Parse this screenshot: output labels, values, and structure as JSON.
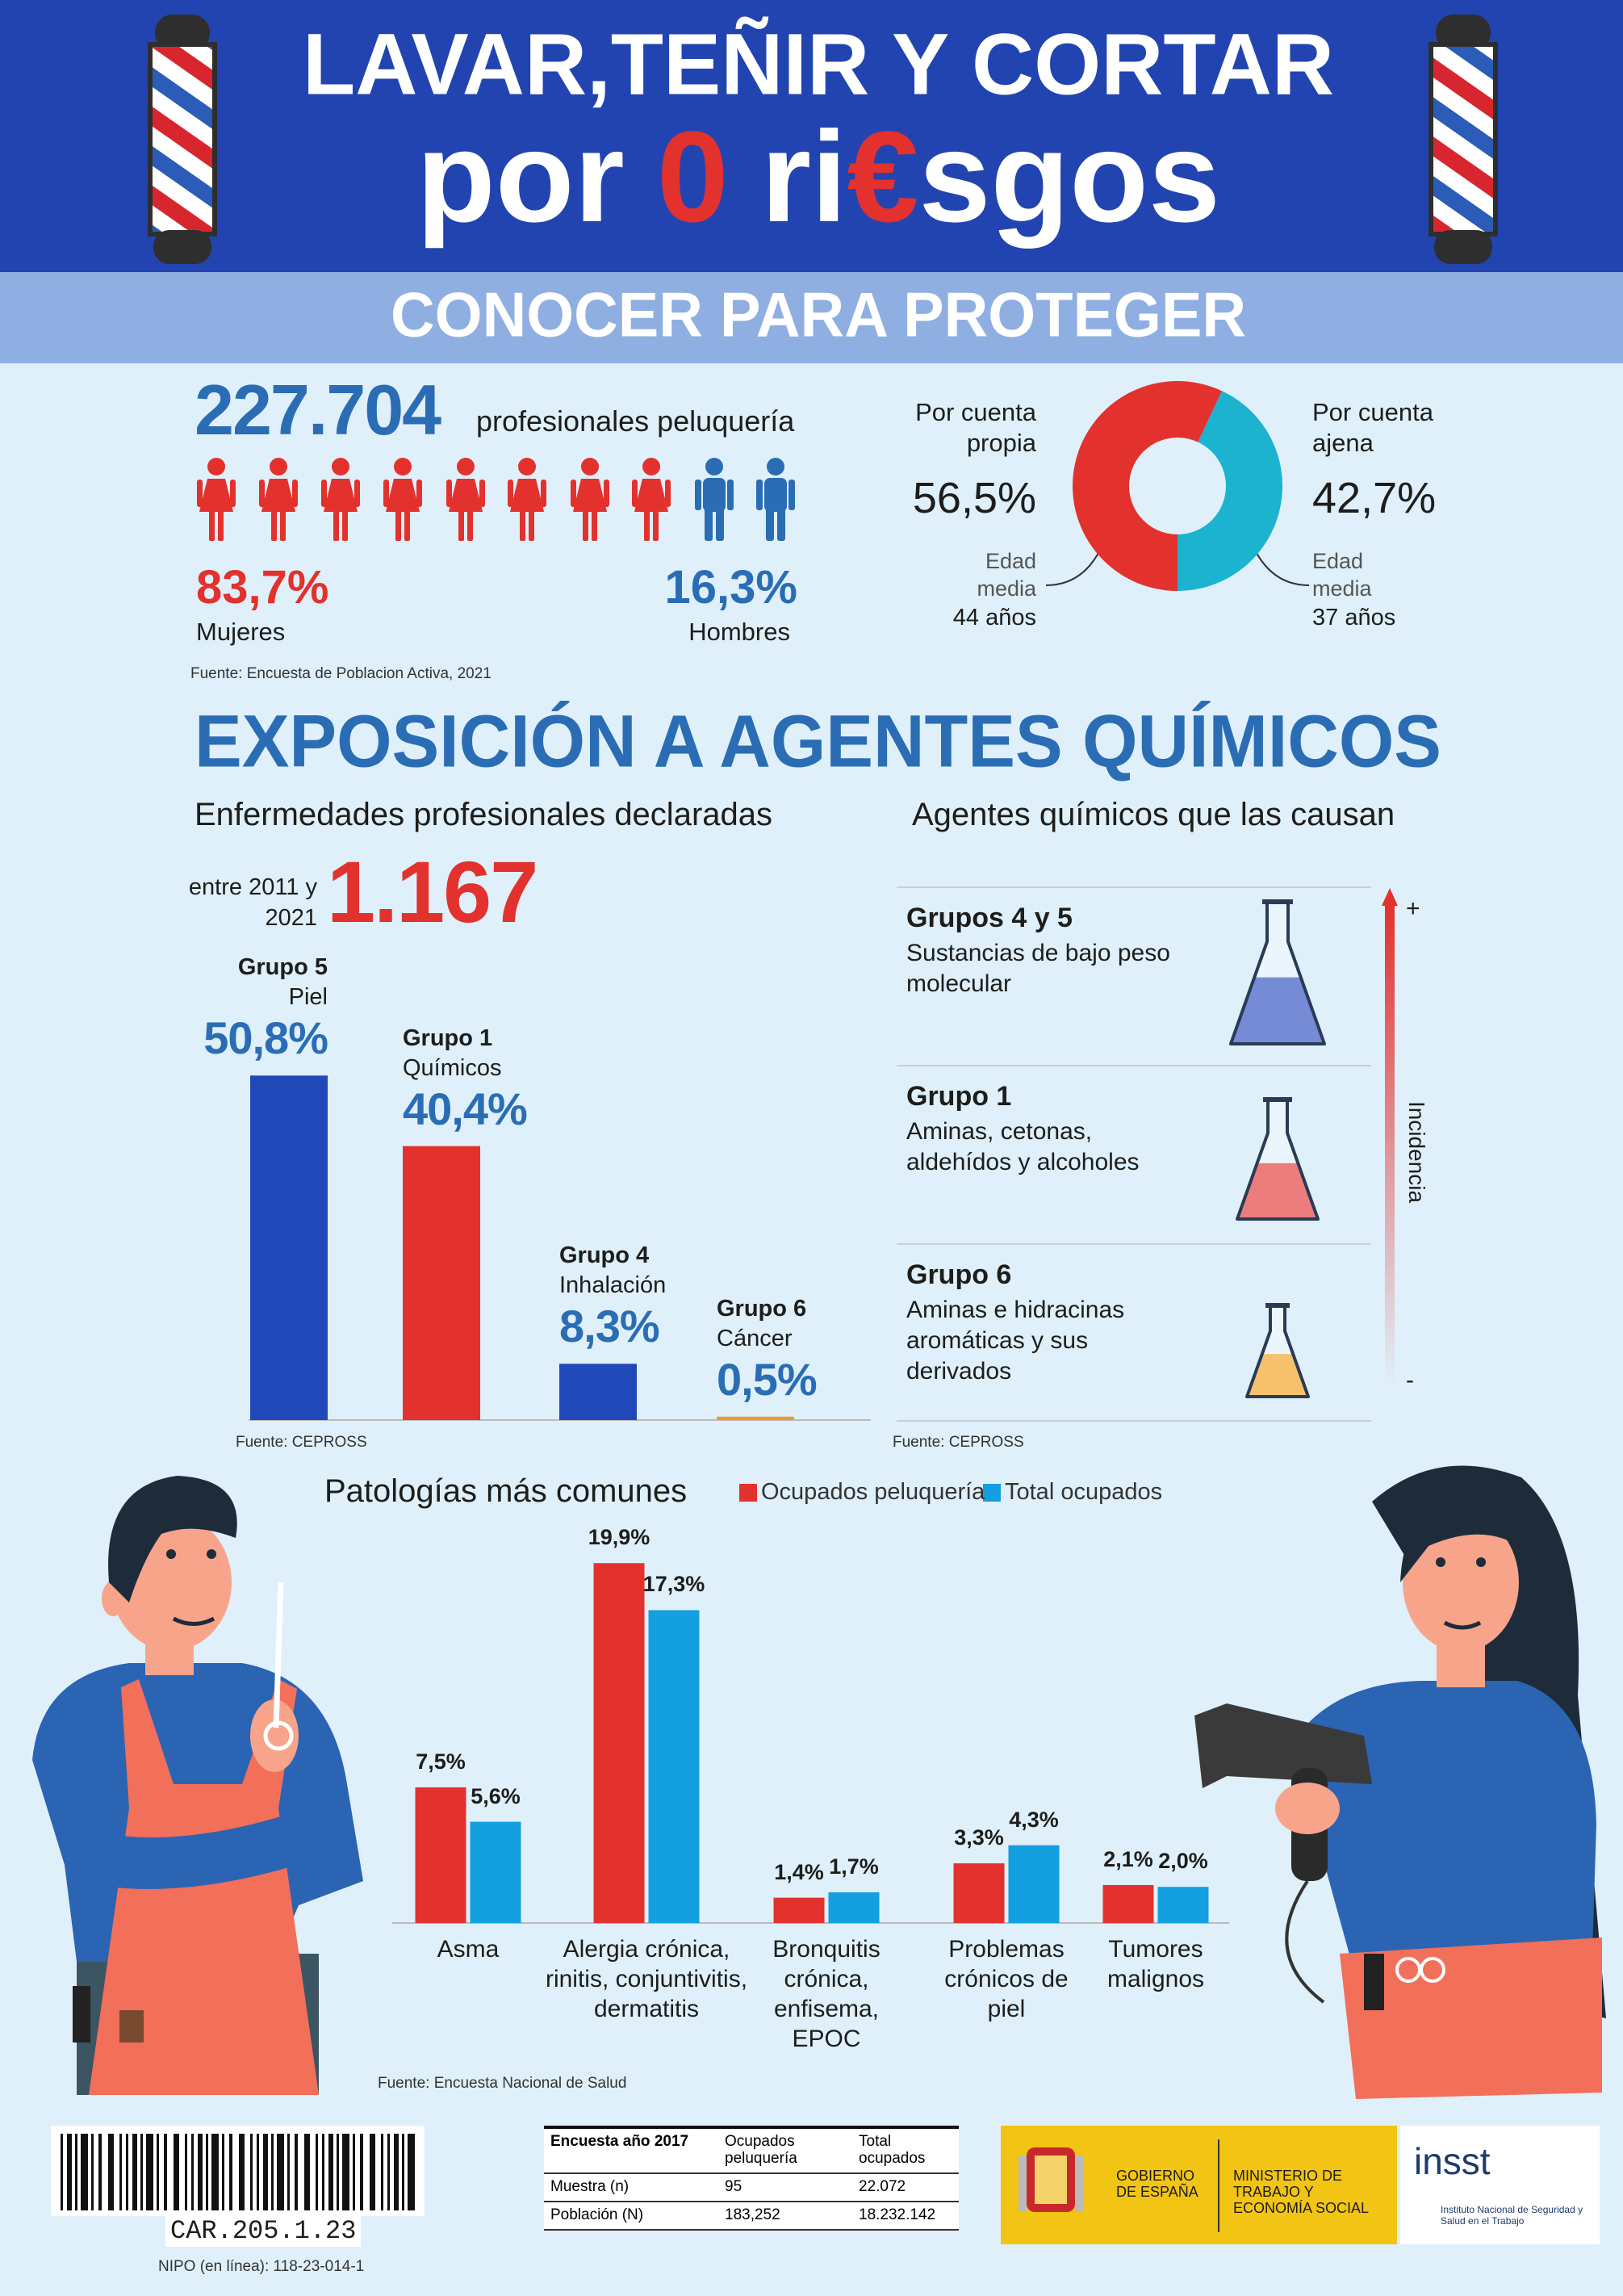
{
  "header": {
    "title": "LAVAR,TEÑIR Y CORTAR",
    "tagline_parts": [
      "por",
      "0",
      "ri",
      "€",
      "sgos"
    ],
    "subtitle": "CONOCER PARA PROTEGER"
  },
  "workforce": {
    "total": "227.704",
    "total_label": "profesionales peluquería",
    "women_share": "83,7%",
    "women_label": "Mujeres",
    "men_share": "16,3%",
    "men_label": "Hombres",
    "source": "Fuente: Encuesta de Poblacion Activa, 2021"
  },
  "chemicals": {
    "heading": "EXPOSICIÓN A AGENTES QUÍMICOS",
    "diseases_title": "Enfermedades profesionales declaradas",
    "period": "entre 2011 y 2021",
    "total": "1.167",
    "diseases_source": "Fuente: CEPROSS",
    "agents_title": "Agentes químicos que las causan",
    "agents": [
      {
        "group": "Grupos 4 y 5",
        "description": "Sustancias de bajo peso molecular"
      },
      {
        "group": "Grupo 1",
        "description": "Aminas, cetonas, aldehídos  y alcoholes"
      },
      {
        "group": "Grupo 6",
        "description": "Aminas e hidracinas aromáticas  y sus derivados"
      }
    ],
    "scale_high": "+",
    "scale_low": "-",
    "scale_label": "Incidencia",
    "agents_source": "Fuente: CEPROSS"
  },
  "chart_data": [
    {
      "type": "pie",
      "categories": [
        "Por cuenta propia",
        "Por cuenta ajena"
      ],
      "values": [
        56.5,
        42.7
      ],
      "value_labels": [
        "56,5%",
        "42,7%"
      ],
      "colors": [
        "#e3312e",
        "#1bb3cf"
      ],
      "annotations": [
        {
          "label": "Edad media",
          "text": "44 años"
        },
        {
          "label": "Edad media",
          "text": "37 años"
        }
      ]
    },
    {
      "type": "bar",
      "categories": [
        "Grupo 5",
        "Grupo 1",
        "Grupo 4",
        "Grupo 6"
      ],
      "descriptions": [
        "Piel",
        "Químicos",
        "Inhalación",
        "Cáncer"
      ],
      "values": [
        50.8,
        40.4,
        8.3,
        0.5
      ],
      "value_labels": [
        "50,8%",
        "40,4%",
        "8,3%",
        "0,5%"
      ],
      "colors": [
        "#2148b8",
        "#e3312e",
        "#2148b8",
        "#ef9a2a"
      ]
    },
    {
      "type": "grouped-bar",
      "title": "Patologías más comunes",
      "categories": [
        "Asma",
        "Alergia crónica, rinitis, conjuntivitis, dermatitis",
        "Bronquitis crónica, enfisema, EPOC",
        "Problemas crónicos de piel",
        "Tumores malignos"
      ],
      "series": [
        {
          "name": "Ocupados peluquería",
          "color": "#e3312e",
          "values": [
            7.5,
            19.9,
            1.4,
            3.3,
            2.1
          ],
          "value_labels": [
            "7,5%",
            "19,9%",
            "1,4%",
            "3,3%",
            "2,1%"
          ]
        },
        {
          "name": "Total ocupados",
          "color": "#139fe0",
          "values": [
            5.6,
            17.3,
            1.7,
            4.3,
            2.0
          ],
          "value_labels": [
            "5,6%",
            "17,3%",
            "1,7%",
            "4,3%",
            "2,0%"
          ]
        }
      ],
      "source": "Fuente: Encuesta Nacional de Salud"
    }
  ],
  "footer": {
    "code": "CAR.205.1.23",
    "nipo": "NIPO (en línea): 118-23-014-1",
    "table": {
      "header": [
        "Encuesta año 2017",
        "Ocupados peluquería",
        "Total ocupados"
      ],
      "rows": [
        [
          "Muestra (n)",
          "95",
          "22.072"
        ],
        [
          "Población (N)",
          "183,252",
          "18.232.142"
        ]
      ]
    },
    "gov": "GOBIERNO DE ESPAÑA",
    "ministry": "MINISTERIO DE TRABAJO Y ECONOMÍA SOCIAL",
    "insst": "insst",
    "insst_full": "Instituto Nacional de Seguridad y Salud en el Trabajo"
  }
}
